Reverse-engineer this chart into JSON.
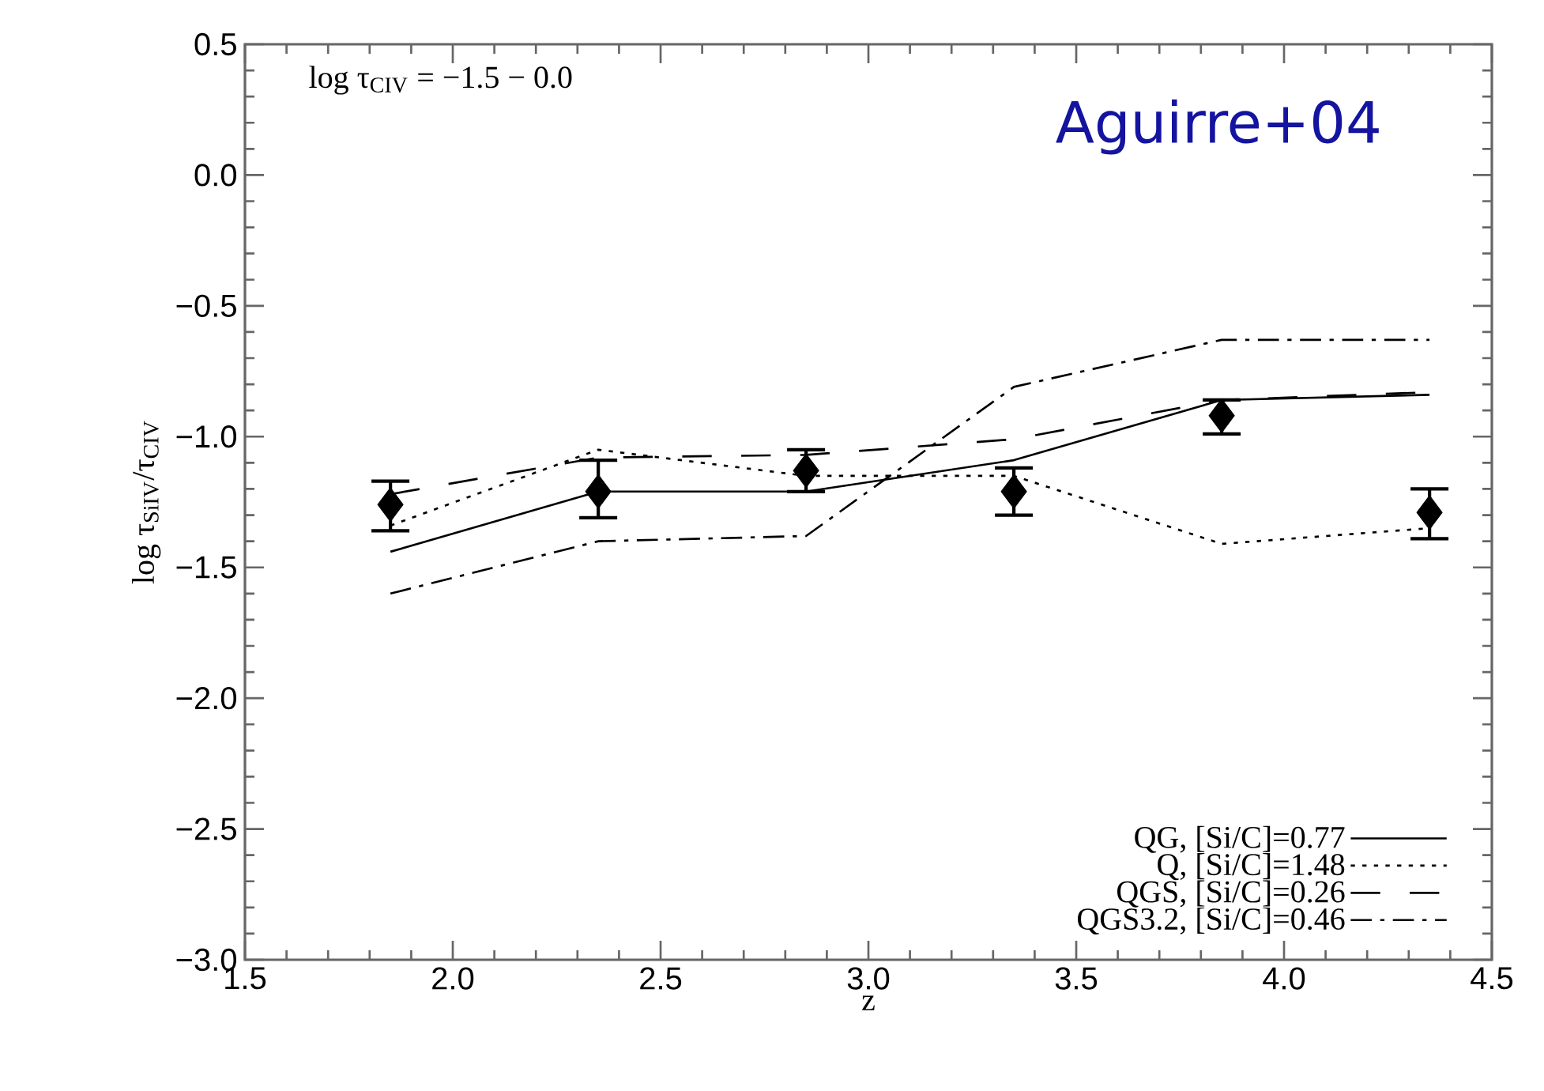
{
  "chart_data": {
    "type": "line",
    "xlabel": "z",
    "ylabel": "log τ$_{SiIV}$/τ$_{CIV}$",
    "annotations": [
      "log τ$_{CIV}$ = −1.5 − 0.0",
      "Aguirre+04"
    ],
    "xlim": [
      1.5,
      4.5
    ],
    "ylim": [
      -3.0,
      0.5
    ],
    "xticks": [
      {
        "value": 1.5,
        "label": "1.5"
      },
      {
        "value": 2.0,
        "label": "2.0"
      },
      {
        "value": 2.5,
        "label": "2.5"
      },
      {
        "value": 3.0,
        "label": "3.0"
      },
      {
        "value": 3.5,
        "label": "3.5"
      },
      {
        "value": 4.0,
        "label": "4.0"
      },
      {
        "value": 4.5,
        "label": "4.5"
      }
    ],
    "yticks": [
      {
        "value": -3.0,
        "label": "−3.0"
      },
      {
        "value": -2.5,
        "label": "−2.5"
      },
      {
        "value": -2.0,
        "label": "−2.0"
      },
      {
        "value": -1.5,
        "label": "−1.5"
      },
      {
        "value": -1.0,
        "label": "−1.0"
      },
      {
        "value": -0.5,
        "label": "−0.5"
      },
      {
        "value": 0.0,
        "label": "0.0"
      },
      {
        "value": 0.5,
        "label": "0.5"
      }
    ],
    "legend": "bottom right",
    "series": [
      {
        "type": "scatter",
        "marker": "diamond",
        "color": "#000000",
        "x": [
          1.85,
          2.35,
          2.85,
          3.35,
          3.85,
          4.35
        ],
        "values": [
          -1.26,
          -1.21,
          -1.13,
          -1.21,
          -0.92,
          -1.29
        ],
        "errors": [
          [
            -1.36,
            -1.17
          ],
          [
            -1.31,
            -1.09
          ],
          [
            -1.21,
            -1.05
          ],
          [
            -1.3,
            -1.12
          ],
          [
            -0.99,
            -0.86
          ],
          [
            -1.39,
            -1.2
          ]
        ]
      },
      {
        "name": "QG, [Si/C]=0.77",
        "line_style": "solid",
        "color": "#000000",
        "x": [
          1.85,
          2.35,
          2.85,
          3.35,
          3.85,
          4.35
        ],
        "values": [
          -1.44,
          -1.21,
          -1.21,
          -1.09,
          -0.86,
          -0.84
        ]
      },
      {
        "name": "Q, [Si/C]=1.48",
        "line_style": "dotted",
        "color": "#000000",
        "x": [
          1.85,
          2.35,
          2.85,
          3.35,
          3.85,
          4.35
        ],
        "values": [
          -1.34,
          -1.05,
          -1.15,
          -1.15,
          -1.41,
          -1.35
        ]
      },
      {
        "name": "QGS, [Si/C]=0.26",
        "line_style": "dashed",
        "color": "#000000",
        "x": [
          1.85,
          2.35,
          2.85,
          3.35,
          3.85,
          4.35
        ],
        "values": [
          -1.22,
          -1.08,
          -1.07,
          -1.01,
          -0.86,
          -0.83
        ]
      },
      {
        "name": "QGS3.2, [Si/C]=0.46",
        "line_style": "dashdot",
        "color": "#000000",
        "x": [
          1.85,
          2.35,
          2.85,
          3.35,
          3.85,
          4.35
        ],
        "values": [
          -1.6,
          -1.4,
          -1.38,
          -0.81,
          -0.63,
          -0.63
        ]
      }
    ]
  }
}
